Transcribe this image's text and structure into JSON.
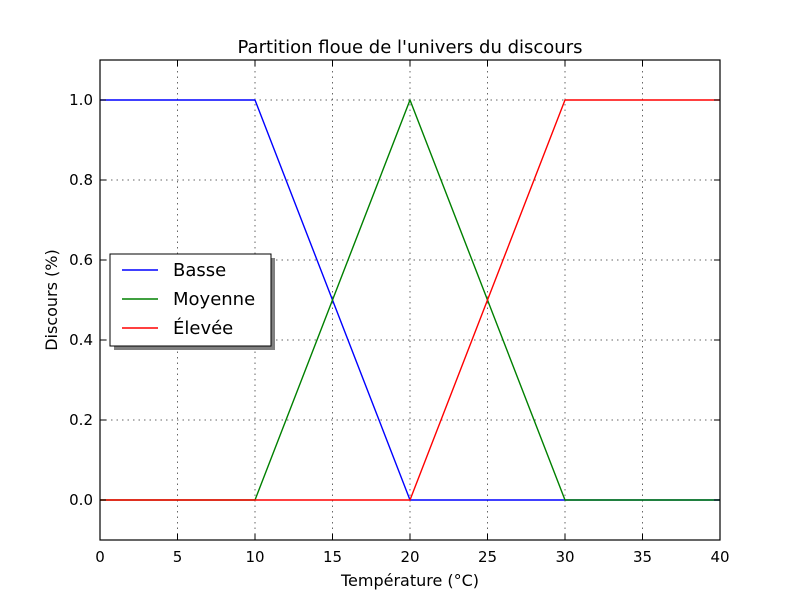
{
  "chart_data": {
    "type": "line",
    "title": "Partition floue de l'univers du discours",
    "xlabel": "Température (°C)",
    "ylabel": "Discours (%)",
    "xlim": [
      0,
      40
    ],
    "ylim": [
      -0.1,
      1.1
    ],
    "xticks": [
      0,
      5,
      10,
      15,
      20,
      25,
      30,
      35,
      40
    ],
    "xtick_labels": [
      "0",
      "5",
      "10",
      "15",
      "20",
      "25",
      "30",
      "35",
      "40"
    ],
    "yticks": [
      0.0,
      0.2,
      0.4,
      0.6,
      0.8,
      1.0
    ],
    "ytick_labels": [
      "0.0",
      "0.2",
      "0.4",
      "0.6",
      "0.8",
      "1.0"
    ],
    "grid": true,
    "legend_position": "center-left",
    "series": [
      {
        "name": "Basse",
        "color": "#0000ff",
        "x": [
          0,
          10,
          20,
          40
        ],
        "y": [
          1,
          1,
          0,
          0
        ]
      },
      {
        "name": "Moyenne",
        "color": "#008000",
        "x": [
          0,
          10,
          20,
          30,
          40
        ],
        "y": [
          0,
          0,
          1,
          0,
          0
        ]
      },
      {
        "name": "Élevée",
        "color": "#ff0000",
        "x": [
          0,
          20,
          30,
          40
        ],
        "y": [
          0,
          0,
          1,
          1
        ]
      }
    ]
  }
}
